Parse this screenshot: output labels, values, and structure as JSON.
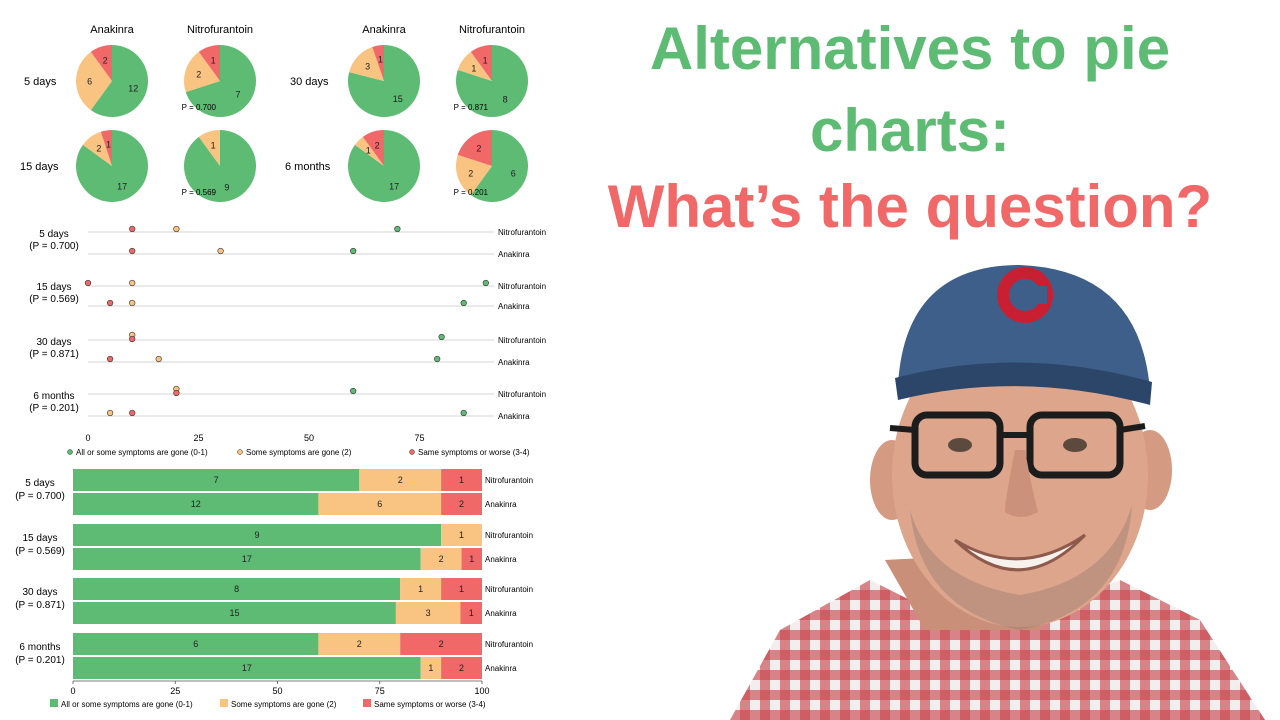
{
  "colors": {
    "green": "#5DBB73",
    "orange": "#F9C382",
    "red": "#F06868",
    "title_green": "#5DBB73",
    "title_red": "#F06868"
  },
  "headline": {
    "line1": "Alternatives to pie",
    "line2": "charts:",
    "line3": "What’s the question?"
  },
  "image": {
    "icon": "smiling-man-photo"
  },
  "chart_data": [
    {
      "type": "pie",
      "columns": [
        "Anakinra",
        "Nitrofurantoin"
      ],
      "rows": [
        {
          "label": "5 days",
          "p": "P = 0.700",
          "Anakinra": [
            12,
            6,
            2
          ],
          "Nitrofurantoin": [
            7,
            2,
            1
          ]
        },
        {
          "label": "15 days",
          "p": "P = 0.569",
          "Anakinra": [
            17,
            2,
            1
          ],
          "Nitrofurantoin": [
            9,
            1,
            0
          ]
        },
        {
          "label": "30 days",
          "p": "P = 0.871",
          "Anakinra": [
            15,
            3,
            1
          ],
          "Nitrofurantoin": [
            8,
            1,
            1
          ]
        },
        {
          "label": "6 months",
          "p": "P = 0.201",
          "Anakinra": [
            17,
            1,
            2
          ],
          "Nitrofurantoin": [
            6,
            2,
            2
          ]
        }
      ]
    },
    {
      "type": "scatter",
      "xlim": [
        0,
        100
      ],
      "xticks": [
        "0",
        "25",
        "50",
        "75"
      ],
      "legend_position": "bottom",
      "legend": [
        "All or some symptoms are gone (0-1)",
        "Some symptoms are gone (2)",
        "Same symptoms or worse (3-4)"
      ],
      "groups": [
        {
          "label": "5 days",
          "p": "(P = 0.700)",
          "Nitrofurantoin": [
            70,
            20,
            10
          ],
          "Anakinra": [
            60,
            30,
            10
          ]
        },
        {
          "label": "15 days",
          "p": "(P = 0.569)",
          "Nitrofurantoin": [
            90,
            10,
            0
          ],
          "Anakinra": [
            85,
            10,
            5
          ]
        },
        {
          "label": "30 days",
          "p": "(P = 0.871)",
          "Nitrofurantoin": [
            80,
            10,
            10
          ],
          "Anakinra": [
            79,
            16,
            5
          ]
        },
        {
          "label": "6 months",
          "p": "(P = 0.201)",
          "Nitrofurantoin": [
            60,
            20,
            20
          ],
          "Anakinra": [
            85,
            5,
            10
          ]
        }
      ]
    },
    {
      "type": "bar",
      "stacked": true,
      "orientation": "horizontal",
      "xlim": [
        0,
        100
      ],
      "xticks": [
        "0",
        "25",
        "50",
        "75",
        "100"
      ],
      "legend_position": "bottom",
      "legend": [
        "All or some symptoms are gone (0-1)",
        "Some symptoms are gone (2)",
        "Same symptoms or worse (3-4)"
      ],
      "groups": [
        {
          "label": "5 days",
          "p": "(P = 0.700)",
          "Nitrofurantoin": [
            7,
            2,
            1
          ],
          "Anakinra": [
            12,
            6,
            2
          ]
        },
        {
          "label": "15 days",
          "p": "(P = 0.569)",
          "Nitrofurantoin": [
            9,
            1,
            0
          ],
          "Anakinra": [
            17,
            2,
            1
          ]
        },
        {
          "label": "30 days",
          "p": "(P = 0.871)",
          "Nitrofurantoin": [
            8,
            1,
            1
          ],
          "Anakinra": [
            15,
            3,
            1
          ]
        },
        {
          "label": "6 months",
          "p": "(P = 0.201)",
          "Nitrofurantoin": [
            6,
            2,
            2
          ],
          "Anakinra": [
            17,
            1,
            2
          ]
        }
      ]
    }
  ]
}
